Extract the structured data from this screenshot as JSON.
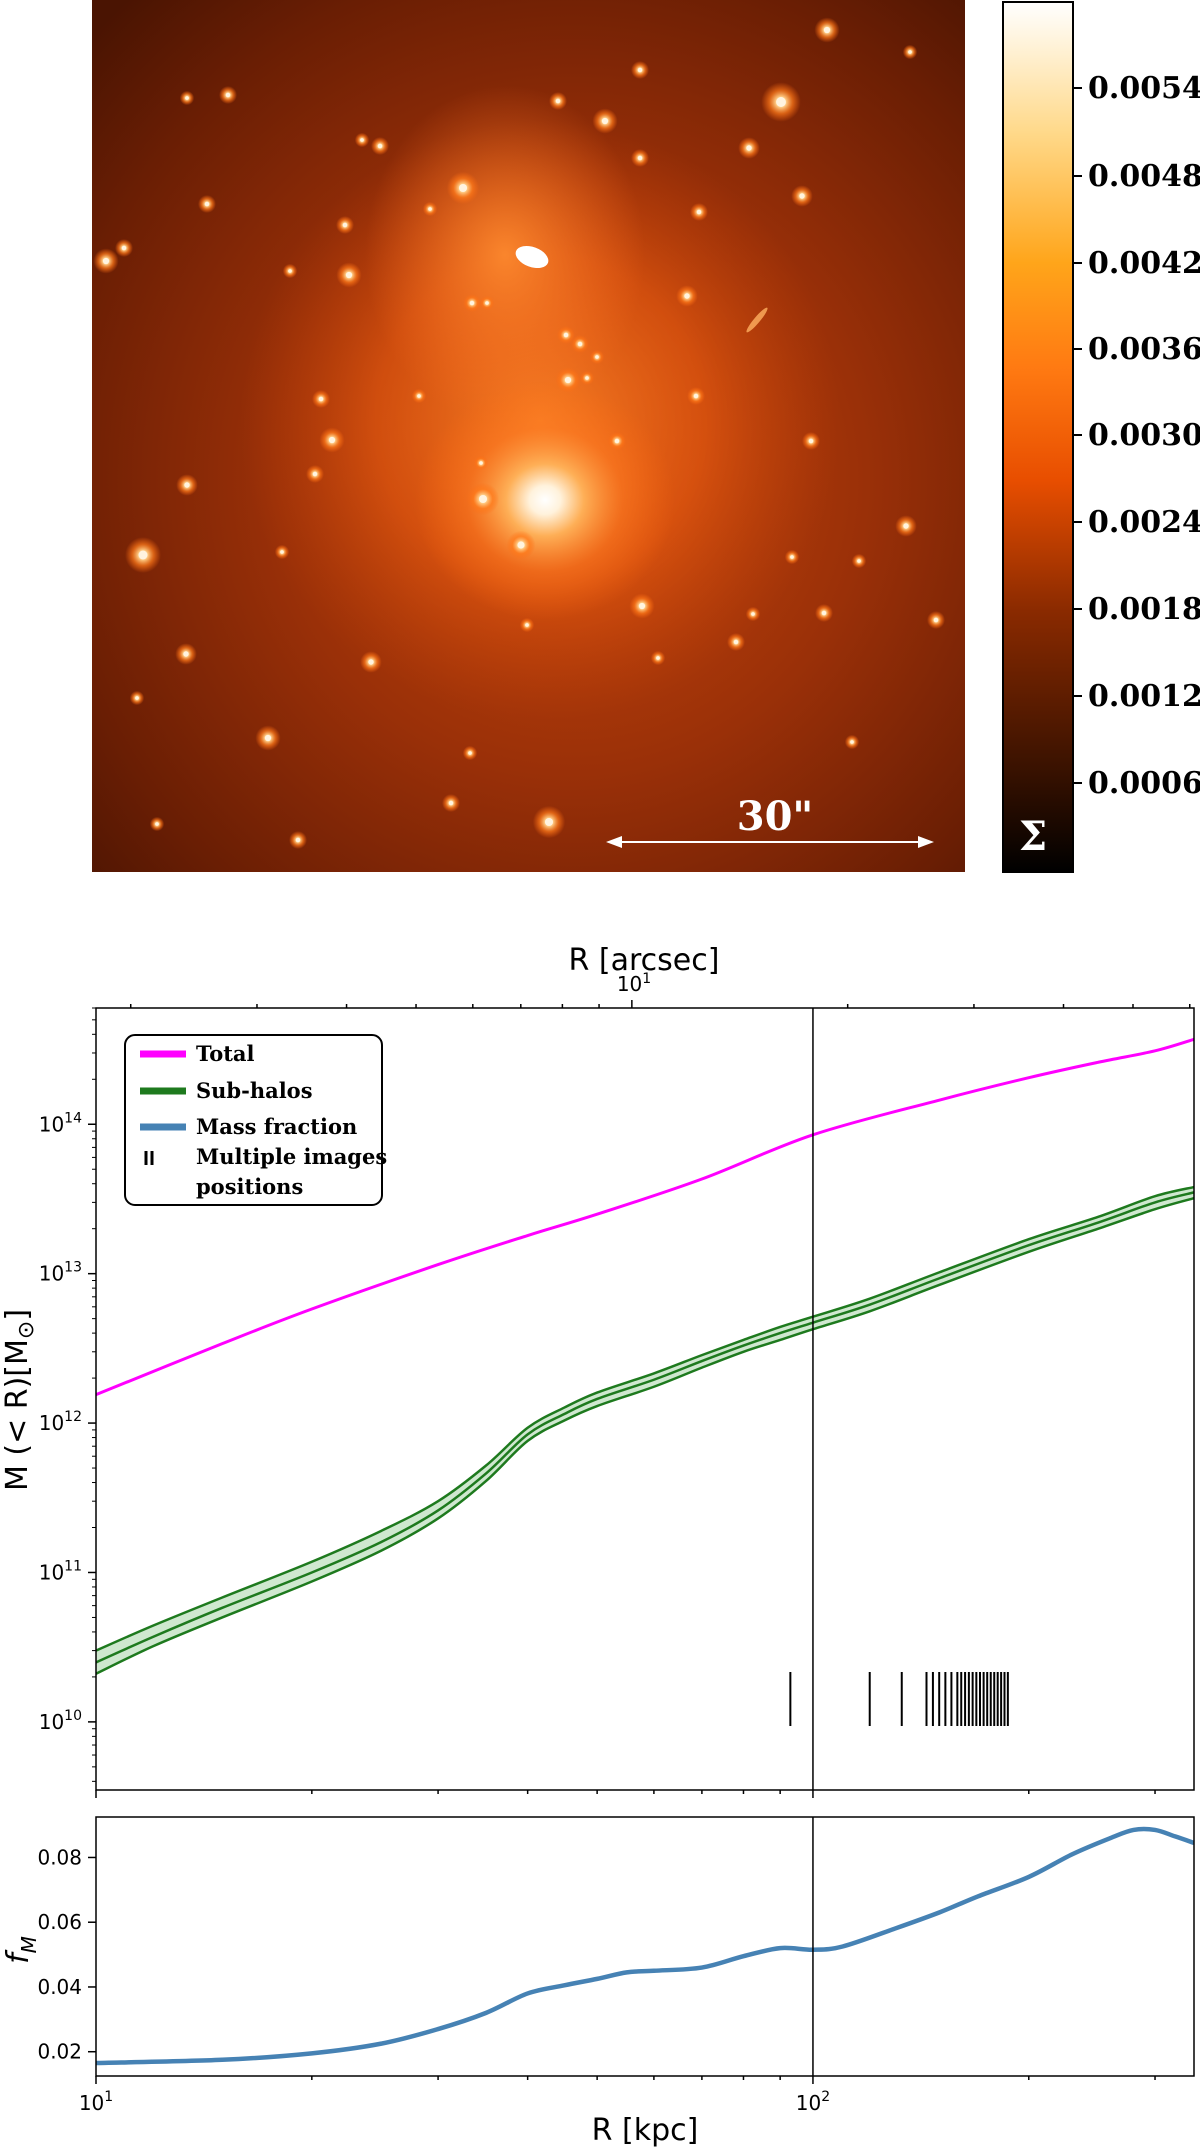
{
  "colors": {
    "colormap": [
      "#000000",
      "#3a1200",
      "#8a2a00",
      "#e84e00",
      "#ff7a12",
      "#ffa51a",
      "#ffd98a",
      "#ffffff"
    ],
    "total": "#ff00ff",
    "subhalos": "#1e7a1e",
    "subhalos_band": "#cfe8cf",
    "fraction": "#4682b4",
    "axis": "#000000"
  },
  "colorbar": {
    "ticks": [
      "0.0054",
      "0.0048",
      "0.0042",
      "0.0036",
      "0.0030",
      "0.0024",
      "0.0018",
      "0.0012",
      "0.0006"
    ],
    "symbol": "Σ"
  },
  "map": {
    "scale_label": "30\""
  },
  "chart_data": [
    {
      "type": "line",
      "top_xlabel": "R [arcsec]",
      "top_tick_label": "10",
      "top_tick_exponent": "1",
      "xlabel": "",
      "ylabel": "M (< R)[M",
      "ylabel_symbol": "⊙",
      "ylabel_close": "]",
      "xscale": "log",
      "yscale": "log",
      "xlim": [
        10,
        340
      ],
      "ylim": [
        3500000000.0,
        600000000000000.0
      ],
      "ytick_base": "10",
      "yticks": [
        {
          "value": 10000000000.0,
          "exp": "10"
        },
        {
          "value": 100000000000.0,
          "exp": "11"
        },
        {
          "value": 1000000000000.0,
          "exp": "12"
        },
        {
          "value": 10000000000000.0,
          "exp": "13"
        },
        {
          "value": 100000000000000.0,
          "exp": "14"
        }
      ],
      "vline_x": 100,
      "legend_position": "upper-left",
      "legend": [
        {
          "label": "Total",
          "kind": "line",
          "color_key": "total"
        },
        {
          "label": "Sub-halos",
          "kind": "line",
          "color_key": "subhalos"
        },
        {
          "label": "Mass fraction",
          "kind": "line",
          "color_key": "fraction"
        },
        {
          "label": "Multiple images positions",
          "kind": "bars"
        }
      ],
      "series": [
        {
          "name": "Total",
          "x": [
            10,
            15,
            20,
            30,
            40,
            50,
            70,
            100,
            150,
            200,
            250,
            300,
            340
          ],
          "y": [
            1550000000000.0,
            3400000000000.0,
            5800000000000.0,
            11500000000000.0,
            18000000000000.0,
            25000000000000.0,
            43000000000000.0,
            85000000000000.0,
            145000000000000.0,
            205000000000000.0,
            260000000000000.0,
            310000000000000.0,
            370000000000000.0
          ]
        },
        {
          "name": "Sub-halos",
          "x": [
            10,
            12,
            15,
            20,
            25,
            30,
            35,
            40,
            45,
            50,
            60,
            70,
            80,
            90,
            100,
            120,
            150,
            200,
            250,
            300,
            340
          ],
          "y": [
            25000000000.0,
            37000000000.0,
            58000000000.0,
            100000000000.0,
            160000000000.0,
            260000000000.0,
            460000000000.0,
            840000000000.0,
            1150000000000.0,
            1450000000000.0,
            1950000000000.0,
            2600000000000.0,
            3300000000000.0,
            4000000000000.0,
            4700000000000.0,
            6200000000000.0,
            9300000000000.0,
            15500000000000.0,
            22000000000000.0,
            30000000000000.0,
            35000000000000.0
          ],
          "y_lower": [
            21000000000.0,
            32000000000.0,
            50000000000.0,
            87000000000.0,
            140000000000.0,
            230000000000.0,
            410000000000.0,
            760000000000.0,
            1040000000000.0,
            1300000000000.0,
            1750000000000.0,
            2350000000000.0,
            3000000000000.0,
            3600000000000.0,
            4250000000000.0,
            5600000000000.0,
            8400000000000.0,
            14000000000000.0,
            20000000000000.0,
            27000000000000.0,
            32000000000000.0
          ],
          "y_upper": [
            30000000000.0,
            44000000000.0,
            68000000000.0,
            118000000000.0,
            190000000000.0,
            300000000000.0,
            520000000000.0,
            930000000000.0,
            1270000000000.0,
            1600000000000.0,
            2150000000000.0,
            2850000000000.0,
            3600000000000.0,
            4400000000000.0,
            5150000000000.0,
            6800000000000.0,
            10200000000000.0,
            17000000000000.0,
            24000000000000.0,
            33000000000000.0,
            38000000000000.0
          ]
        }
      ],
      "image_positions_x": [
        93,
        120,
        133,
        144,
        147,
        150,
        153,
        156,
        159,
        161,
        163,
        165,
        167,
        169,
        171,
        173,
        175,
        177,
        179,
        181,
        183,
        185,
        187
      ]
    },
    {
      "type": "line",
      "xlabel": "R [kpc]",
      "ylabel": "f",
      "ylabel_sub": "M",
      "xscale": "log",
      "xlim": [
        10,
        340
      ],
      "ylim": [
        0.0125,
        0.0925
      ],
      "xtick_base": "10",
      "xticks": [
        {
          "value": 10,
          "exp": "1"
        },
        {
          "value": 100,
          "exp": "2"
        }
      ],
      "yticks": [
        0.02,
        0.04,
        0.06,
        0.08
      ],
      "ytick_labels": [
        "0.02",
        "0.04",
        "0.06",
        "0.08"
      ],
      "vline_x": 100,
      "series": [
        {
          "name": "Mass fraction",
          "x": [
            10,
            15,
            20,
            25,
            30,
            35,
            40,
            45,
            50,
            55,
            60,
            70,
            80,
            90,
            100,
            110,
            130,
            150,
            170,
            200,
            230,
            260,
            280,
            300,
            320,
            340
          ],
          "y": [
            0.0165,
            0.0175,
            0.0195,
            0.0225,
            0.027,
            0.032,
            0.038,
            0.0405,
            0.0425,
            0.0445,
            0.045,
            0.046,
            0.0495,
            0.052,
            0.0515,
            0.0525,
            0.058,
            0.063,
            0.068,
            0.074,
            0.081,
            0.086,
            0.0885,
            0.0885,
            0.0865,
            0.0845
          ]
        }
      ]
    }
  ]
}
